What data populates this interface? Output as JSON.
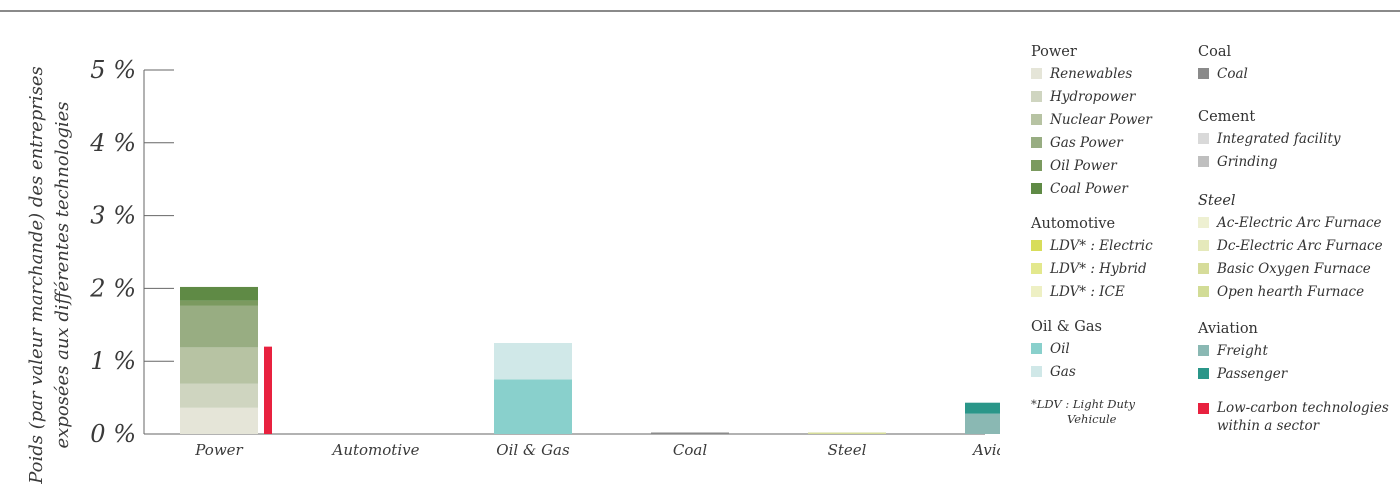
{
  "chart_data": {
    "type": "bar",
    "stacked": true,
    "ylabel_line1": "Poids (par valeur marchande) des entreprises",
    "ylabel_line2": "exposées aux différentes technologies",
    "ylim": [
      0,
      5
    ],
    "yticks": [
      0,
      1,
      2,
      3,
      4,
      5
    ],
    "ytick_labels": [
      "0 %",
      "1 %",
      "2 %",
      "3 %",
      "4 %",
      "5 %"
    ],
    "grid": false,
    "legend_position": "right",
    "categories": [
      "Power",
      "Automotive",
      "Oil & Gas",
      "Coal",
      "Steel",
      "Aviation"
    ],
    "category_labels": [
      "Power",
      "Automotive",
      "Oil & Gas",
      "Coal",
      "Steel",
      "Aviation"
    ],
    "bars": [
      {
        "category": "Power",
        "segments": [
          {
            "name": "Renewables",
            "value": 0.36,
            "color": "#e5e5d8"
          },
          {
            "name": "Hydropower",
            "value": 0.33,
            "color": "#cfd5c0"
          },
          {
            "name": "Nuclear Power",
            "value": 0.5,
            "color": "#b7c3a3"
          },
          {
            "name": "Gas Power",
            "value": 0.57,
            "color": "#98ad82"
          },
          {
            "name": "Oil Power",
            "value": 0.07,
            "color": "#7b9a5f"
          },
          {
            "name": "Coal Power",
            "value": 0.19,
            "color": "#5f8a45"
          }
        ]
      },
      {
        "category": "Automotive",
        "segments": []
      },
      {
        "category": "Oil & Gas",
        "segments": [
          {
            "name": "Oil",
            "value": 0.75,
            "color": "#89d0cc"
          },
          {
            "name": "Gas",
            "value": 0.5,
            "color": "#d0e8e8"
          }
        ]
      },
      {
        "category": "Coal",
        "segments": [
          {
            "name": "Coal",
            "value": 0.01,
            "color": "#8a8a8a"
          }
        ]
      },
      {
        "category": "Steel",
        "segments": [
          {
            "name": "Basic Oxygen Furnace",
            "value": 0.02,
            "color": "#d6dc9a"
          }
        ]
      },
      {
        "category": "Aviation",
        "segments": [
          {
            "name": "Freight",
            "value": 0.28,
            "color": "#8ab8b3"
          },
          {
            "name": "Passenger",
            "value": 0.15,
            "color": "#2a9689"
          }
        ]
      }
    ],
    "low_carbon": [
      {
        "category": "Power",
        "value": 1.2,
        "color": "#e8213f"
      }
    ]
  },
  "legend": {
    "power": {
      "title": "Power",
      "items": [
        {
          "label": "Renewables",
          "color": "#e5e5d8"
        },
        {
          "label": "Hydropower",
          "color": "#cfd5c0"
        },
        {
          "label": "Nuclear Power",
          "color": "#b7c3a3"
        },
        {
          "label": "Gas Power",
          "color": "#98ad82"
        },
        {
          "label": "Oil Power",
          "color": "#7b9a5f"
        },
        {
          "label": "Coal Power",
          "color": "#5f8a45"
        }
      ]
    },
    "automotive": {
      "title": "Automotive",
      "items": [
        {
          "label": "LDV* : Electric",
          "color": "#d8dd5a"
        },
        {
          "label": "LDV* : Hybrid",
          "color": "#e3e88d"
        },
        {
          "label": "LDV* : ICE",
          "color": "#eef0c4"
        }
      ]
    },
    "oilgas": {
      "title": "Oil & Gas",
      "items": [
        {
          "label": "Oil",
          "color": "#89d0cc"
        },
        {
          "label": "Gas",
          "color": "#d0e8e8"
        }
      ]
    },
    "coal": {
      "title": "Coal",
      "items": [
        {
          "label": "Coal",
          "color": "#8a8a8a"
        }
      ]
    },
    "cement": {
      "title": "Cement",
      "items": [
        {
          "label": "Integrated facility",
          "color": "#d9d9d9"
        },
        {
          "label": "Grinding",
          "color": "#bfbfbf"
        }
      ]
    },
    "steel": {
      "title": "Steel",
      "items": [
        {
          "label": "Ac-Electric Arc Furnace",
          "color": "#eef0d2"
        },
        {
          "label": "Dc-Electric Arc Furnace",
          "color": "#e5e9bb"
        },
        {
          "label": "Basic Oxygen Furnace",
          "color": "#d6dc9a"
        },
        {
          "label": "Open hearth Furnace",
          "color": "#d2dc96"
        }
      ]
    },
    "aviation": {
      "title": "Aviation",
      "items": [
        {
          "label": "Freight",
          "color": "#8ab8b3"
        },
        {
          "label": "Passenger",
          "color": "#2a9689"
        }
      ]
    },
    "ldv_note_line1": "*LDV : Light Duty",
    "ldv_note_line2": "Vehicule",
    "low_carbon_label_line1": "Low-carbon technologies",
    "low_carbon_label_line2": "within a sector",
    "low_carbon_color": "#e8213f"
  }
}
